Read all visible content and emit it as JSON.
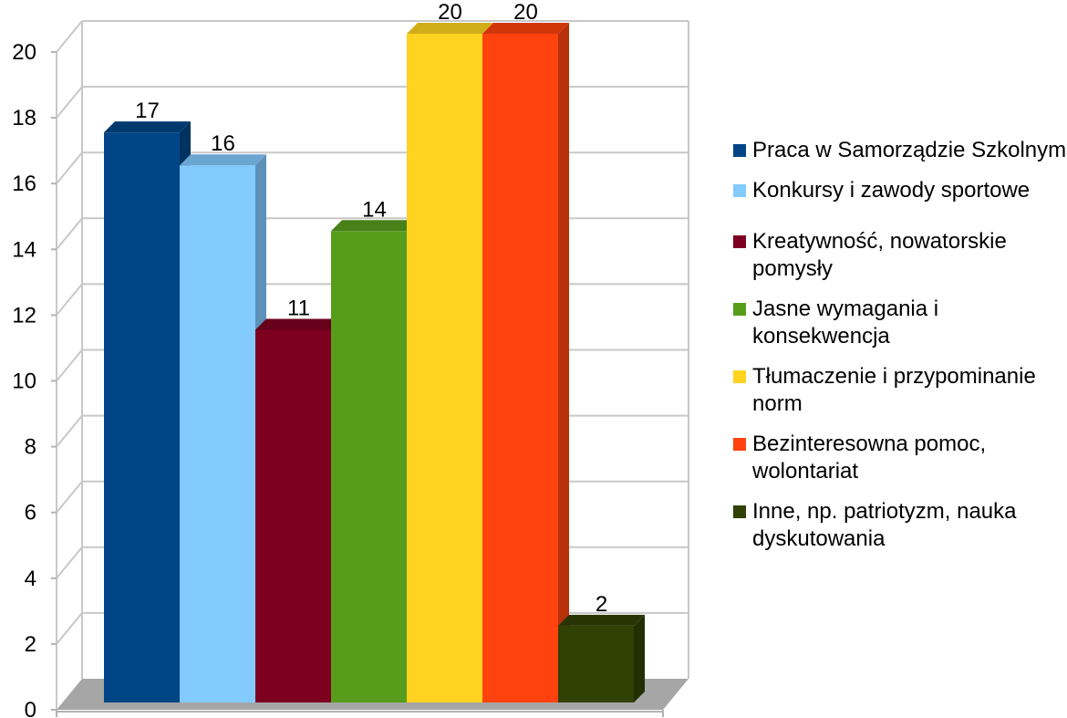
{
  "chart_data": {
    "type": "bar",
    "title": "",
    "xlabel": "",
    "ylabel": "",
    "ylim": [
      0,
      20
    ],
    "yticks": [
      "0",
      "2",
      "4",
      "6",
      "8",
      "10",
      "12",
      "14",
      "16",
      "18",
      "20"
    ],
    "grid": true,
    "legend_position": "right",
    "series": [
      {
        "name": "Praca w Samorządzie Szkolnym",
        "value": 17,
        "label": "17",
        "color": "#004586"
      },
      {
        "name": "Konkursy i zawody sportowe",
        "value": 16,
        "label": "16",
        "color": "#83CAFF"
      },
      {
        "name": "Kreatywność, nowatorskie pomysły",
        "value": 11,
        "label": "11",
        "color": "#7E0021"
      },
      {
        "name": "Jasne wymagania i konsekwencja",
        "value": 14,
        "label": "14",
        "color": "#579D1C"
      },
      {
        "name": "Tłumaczenie i przypominanie norm",
        "value": 20,
        "label": "20",
        "color": "#FFD320"
      },
      {
        "name": "Bezinteresowna pomoc, wolontariat",
        "value": 20,
        "label": "20",
        "color": "#FF420E"
      },
      {
        "name": "Inne, np. patriotyzm, nauka dyskutowania",
        "value": 2,
        "label": "2",
        "color": "#314004"
      }
    ]
  }
}
